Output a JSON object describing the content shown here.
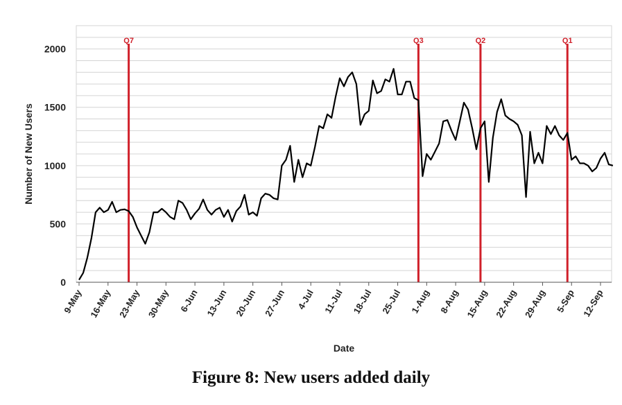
{
  "caption": "Figure 8: New users added daily",
  "chart_data": {
    "type": "line",
    "xlabel": "Date",
    "ylabel": "Number of New Users",
    "ylim": [
      0,
      2200
    ],
    "yticks": [
      0,
      500,
      1000,
      1500,
      2000
    ],
    "grid": true,
    "line_color": "#000000",
    "marker_color": "#d0202a",
    "x_tick_labels": [
      "9-May",
      "16-May",
      "23-May",
      "30-May",
      "6-Jun",
      "13-Jun",
      "20-Jun",
      "27-Jun",
      "4-Jul",
      "11-Jul",
      "18-Jul",
      "25-Jul",
      "1-Aug",
      "8-Aug",
      "15-Aug",
      "22-Aug",
      "29-Aug",
      "5-Sep",
      "12-Sep"
    ],
    "x_start": "9-May",
    "markers": [
      {
        "label": "Q7",
        "x": "21-May"
      },
      {
        "label": "Q3",
        "x": "30-Jul"
      },
      {
        "label": "Q2",
        "x": "14-Aug"
      },
      {
        "label": "Q1",
        "x": "4-Sep"
      }
    ],
    "series": [
      {
        "values": [
          20,
          80,
          210,
          380,
          600,
          640,
          600,
          620,
          690,
          600,
          620,
          625,
          610,
          560,
          470,
          400,
          330,
          430,
          600,
          600,
          630,
          600,
          560,
          540,
          700,
          680,
          620,
          540,
          590,
          630,
          710,
          620,
          580,
          620,
          640,
          560,
          620,
          520,
          610,
          650,
          750,
          580,
          600,
          570,
          720,
          760,
          750,
          720,
          710,
          1000,
          1050,
          1170,
          860,
          1050,
          900,
          1020,
          1000,
          1160,
          1340,
          1320,
          1440,
          1410,
          1590,
          1750,
          1680,
          1760,
          1800,
          1700,
          1350,
          1440,
          1470,
          1730,
          1620,
          1640,
          1740,
          1720,
          1830,
          1610,
          1610,
          1720,
          1720,
          1580,
          1560,
          910,
          1100,
          1050,
          1120,
          1190,
          1380,
          1390,
          1300,
          1220,
          1380,
          1540,
          1480,
          1320,
          1140,
          1320,
          1380,
          860,
          1240,
          1460,
          1570,
          1430,
          1400,
          1380,
          1350,
          1260,
          730,
          1290,
          1020,
          1110,
          1020,
          1340,
          1270,
          1340,
          1260,
          1220,
          1280,
          1050,
          1080,
          1020,
          1020,
          1000,
          950,
          980,
          1060,
          1110,
          1010,
          1000
        ]
      }
    ]
  }
}
